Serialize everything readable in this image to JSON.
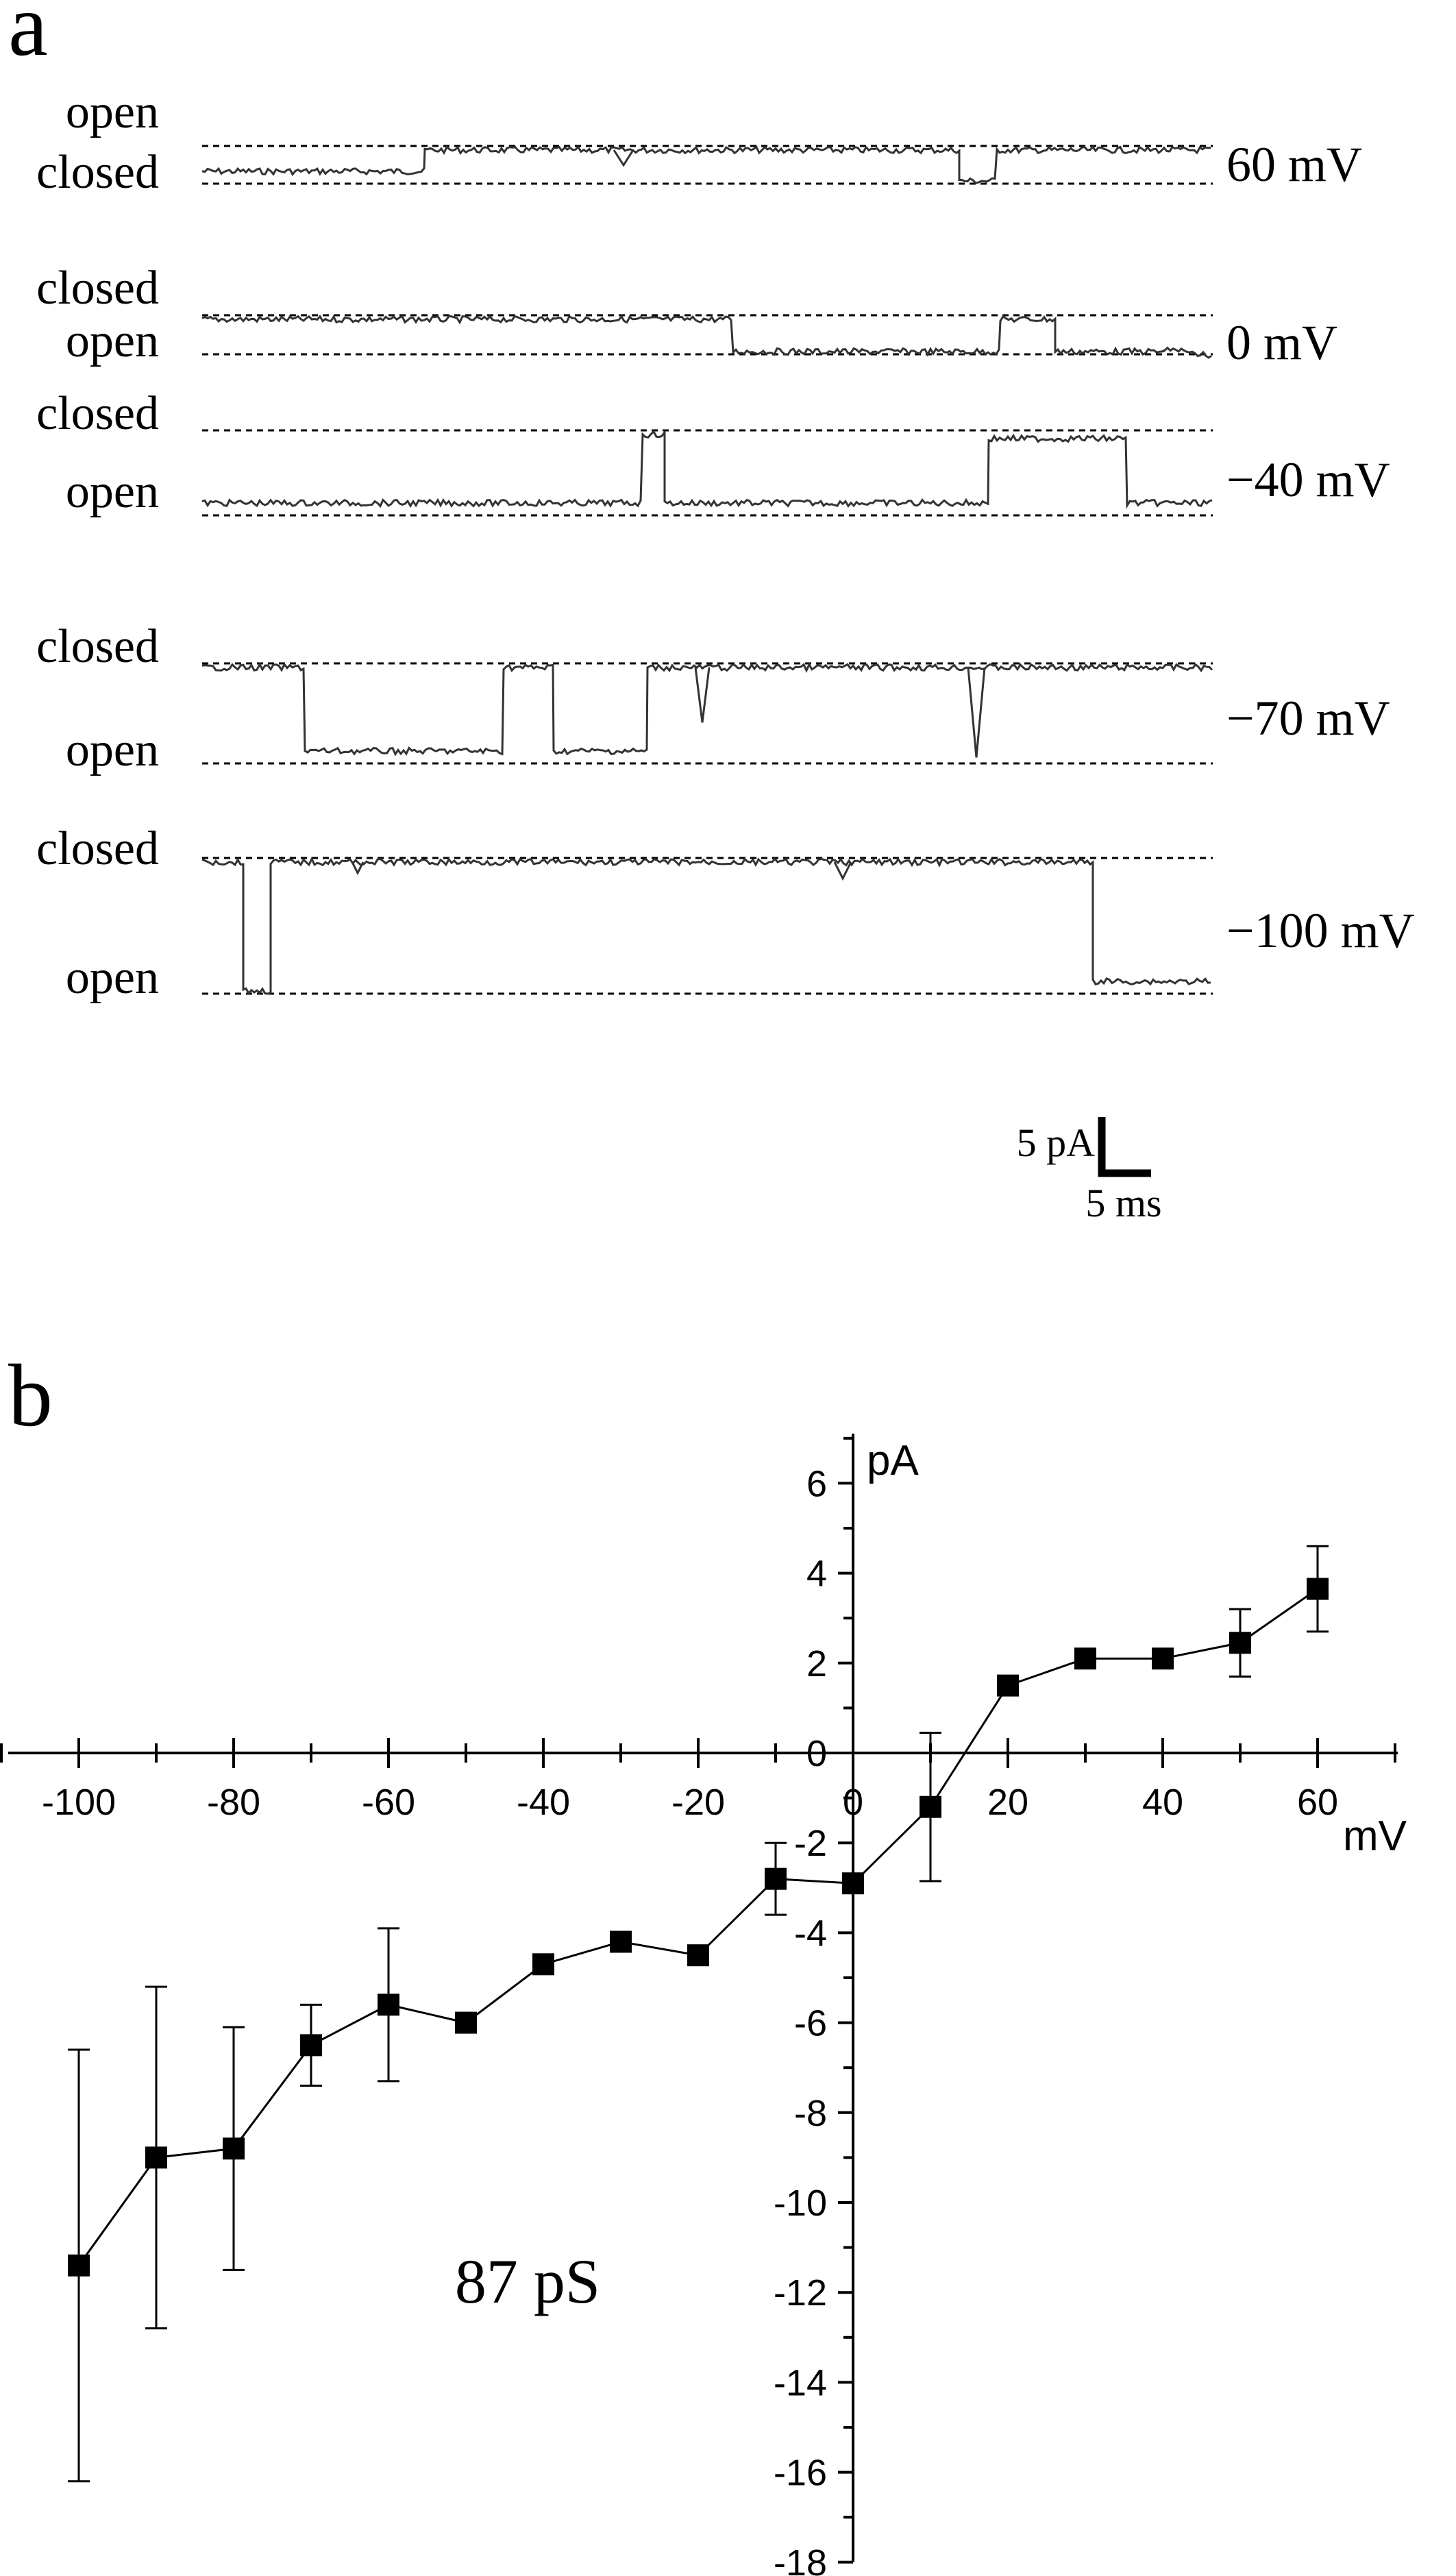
{
  "panel_a": {
    "letter": "a",
    "traces": [
      {
        "voltage_label": "60 mV",
        "upper_label": "open",
        "lower_label": "closed"
      },
      {
        "voltage_label": "0 mV",
        "upper_label": "closed",
        "lower_label": "open"
      },
      {
        "voltage_label": "−40 mV",
        "upper_label": "closed",
        "lower_label": "open"
      },
      {
        "voltage_label": "−70 mV",
        "upper_label": "closed",
        "lower_label": "open"
      },
      {
        "voltage_label": "−100 mV",
        "upper_label": "closed",
        "lower_label": "open"
      }
    ],
    "scale_bar": {
      "current_label": "5 pA",
      "time_label": "5 ms"
    }
  },
  "panel_b": {
    "letter": "b",
    "annotation": "87 pS"
  },
  "chart_data": {
    "type": "scatter",
    "x_unit_label": "mV",
    "y_unit_label": "pA",
    "xlim": [
      -110,
      70
    ],
    "ylim": [
      -18,
      7
    ],
    "x_ticks": [
      -100,
      -80,
      -60,
      -40,
      -20,
      0,
      20,
      40,
      60
    ],
    "y_ticks": [
      6,
      4,
      2,
      0,
      -2,
      -4,
      -6,
      -8,
      -10,
      -12,
      -14,
      -16,
      -18
    ],
    "lines_connect_points": true,
    "series": [
      {
        "x": [
          -100,
          -90,
          -80,
          -70,
          -60,
          -50,
          -40,
          -30,
          -20,
          -10,
          0,
          10,
          20,
          30,
          40,
          50,
          60
        ],
        "y": [
          -11.4,
          -9.0,
          -8.8,
          -6.5,
          -5.6,
          -6.0,
          -4.7,
          -4.2,
          -4.5,
          -2.8,
          -2.9,
          -1.2,
          1.5,
          2.1,
          2.1,
          2.45,
          3.65
        ],
        "error": [
          4.8,
          3.8,
          2.7,
          0.9,
          1.7,
          null,
          null,
          null,
          null,
          0.8,
          null,
          1.65,
          null,
          null,
          null,
          0.75,
          0.95
        ]
      }
    ],
    "annotation": "87 pS"
  }
}
